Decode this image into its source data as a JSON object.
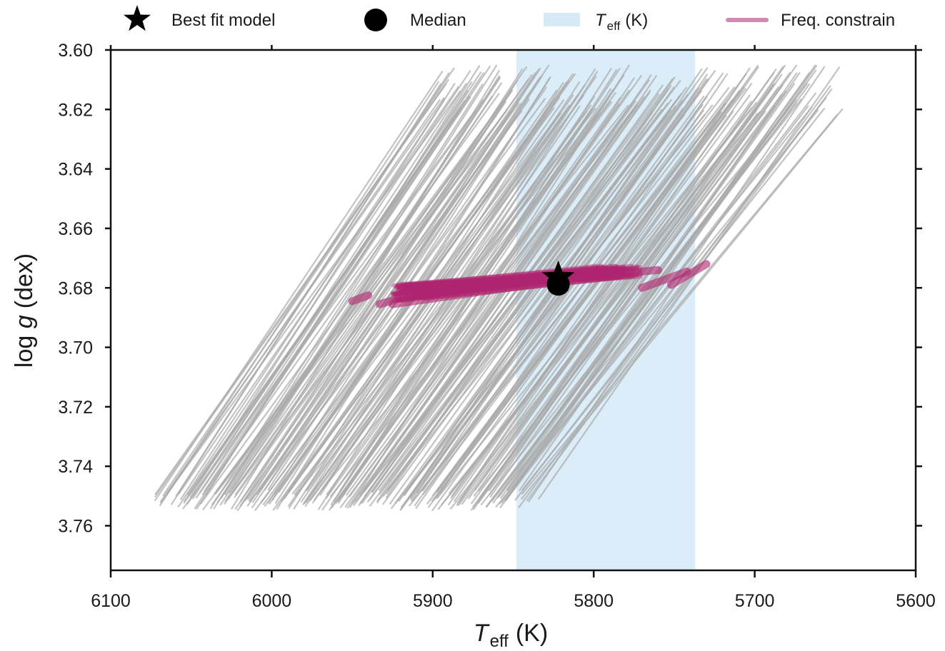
{
  "chart_data": {
    "type": "line",
    "title": "",
    "xlabel": {
      "symbol": "T",
      "subscript": "eff",
      "unit": "(K)"
    },
    "ylabel": {
      "prefix": "log ",
      "symbol": "g",
      "unit": "(dex)"
    },
    "xlim": [
      6100,
      5600
    ],
    "ylim": [
      3.6,
      3.775
    ],
    "x_inverted": true,
    "y_inverted": true,
    "x_ticks": [
      6100,
      6000,
      5900,
      5800,
      5700,
      5600
    ],
    "x_tick_labels": [
      "6100",
      "6000",
      "5900",
      "5800",
      "5700",
      "5600"
    ],
    "y_ticks": [
      3.6,
      3.62,
      3.64,
      3.66,
      3.68,
      3.7,
      3.72,
      3.74,
      3.76
    ],
    "y_tick_labels": [
      "3.60",
      "3.62",
      "3.64",
      "3.66",
      "3.68",
      "3.70",
      "3.72",
      "3.74",
      "3.76"
    ],
    "grid": false,
    "legend_position": "top",
    "legend": [
      {
        "label": "Best fit model",
        "marker": "star",
        "color": "#000000"
      },
      {
        "label": "Median",
        "marker": "circle",
        "color": "#000000"
      },
      {
        "label_symbol": "T",
        "label_sub": "eff",
        "label_unit": "(K)",
        "marker": "patch",
        "color": "#d6eaf5"
      },
      {
        "label": "Freq. constrain",
        "marker": "line",
        "color": "#d089b3"
      }
    ],
    "teff_band": {
      "x_from": 5848,
      "x_to": 5737,
      "color": "#add8ef"
    },
    "tracks": {
      "color": "#a9a9a9",
      "start": {
        "teff_min": 5650,
        "teff_max": 5895,
        "logg_min": 3.605,
        "logg_max": 3.622
      },
      "end": {
        "teff_min": 5842,
        "teff_max": 6068,
        "logg_min": 3.748,
        "logg_max": 3.755
      }
    },
    "freq_constrain": {
      "color": "#b0266f",
      "segments": [
        {
          "x": [
            5950,
            5940
          ],
          "y": [
            3.6845,
            3.6825
          ]
        },
        {
          "x": [
            5933,
            5905
          ],
          "y": [
            3.6855,
            3.681
          ]
        },
        {
          "x": [
            5925,
            5820
          ],
          "y": [
            3.6855,
            3.6775
          ]
        },
        {
          "x": [
            5905,
            5785
          ],
          "y": [
            3.683,
            3.676
          ]
        },
        {
          "x": [
            5860,
            5760
          ],
          "y": [
            3.679,
            3.674
          ]
        },
        {
          "x": [
            5770,
            5742
          ],
          "y": [
            3.68,
            3.6745
          ]
        },
        {
          "x": [
            5752,
            5730
          ],
          "y": [
            3.679,
            3.672
          ]
        }
      ]
    },
    "best_fit": {
      "teff": 5822,
      "logg": 3.678,
      "color": "#000000"
    },
    "median": {
      "teff": 5822,
      "logg": 3.6788,
      "color": "#000000"
    }
  }
}
